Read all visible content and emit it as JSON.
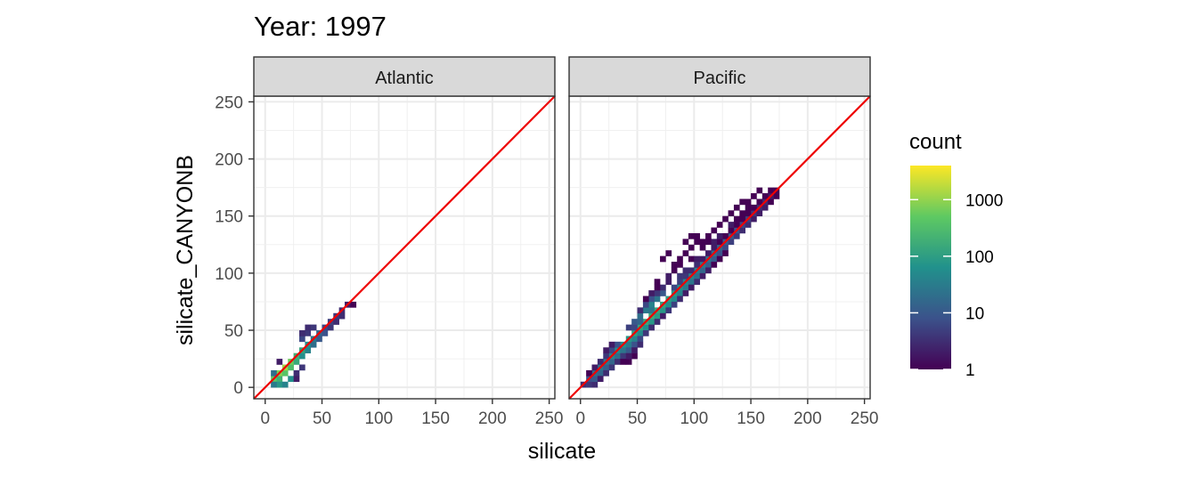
{
  "chart_data": {
    "type": "heatmap",
    "title": "Year: 1997",
    "xlabel": "silicate",
    "ylabel": "silicate_CANYONB",
    "xlim": [
      -10,
      255
    ],
    "ylim": [
      -10,
      255
    ],
    "x_ticks": [
      0,
      50,
      100,
      150,
      200,
      250
    ],
    "y_ticks": [
      0,
      50,
      100,
      150,
      200,
      250
    ],
    "x_tick_labels": [
      "0",
      "50",
      "100",
      "150",
      "200",
      "250"
    ],
    "y_tick_labels": [
      "0",
      "50",
      "100",
      "150",
      "200",
      "250"
    ],
    "grid": true,
    "reference_line": {
      "slope": 1,
      "intercept": 0,
      "color": "#ee0000"
    },
    "legend": {
      "title": "count",
      "position": "right",
      "scale": "log",
      "range": [
        1,
        4000
      ],
      "ticks": [
        1,
        10,
        100,
        1000
      ],
      "tick_labels": [
        "1",
        "10",
        "100",
        "1000"
      ],
      "colormap": [
        "#440154",
        "#3b528b",
        "#21918c",
        "#5ec962",
        "#fde725"
      ]
    },
    "bin_width": 5,
    "panels": [
      {
        "name": "Atlantic",
        "bins": [
          [
            5,
            5,
            500
          ],
          [
            10,
            5,
            200
          ],
          [
            10,
            10,
            800
          ],
          [
            15,
            10,
            400
          ],
          [
            15,
            15,
            1200
          ],
          [
            20,
            15,
            300
          ],
          [
            20,
            20,
            600
          ],
          [
            25,
            20,
            150
          ],
          [
            10,
            0,
            80
          ],
          [
            15,
            0,
            40
          ],
          [
            20,
            5,
            60
          ],
          [
            5,
            0,
            30
          ],
          [
            25,
            25,
            200
          ],
          [
            30,
            25,
            60
          ],
          [
            30,
            30,
            120
          ],
          [
            35,
            30,
            40
          ],
          [
            35,
            35,
            60
          ],
          [
            40,
            35,
            20
          ],
          [
            40,
            40,
            30
          ],
          [
            45,
            40,
            10
          ],
          [
            45,
            45,
            15
          ],
          [
            50,
            45,
            8
          ],
          [
            30,
            40,
            6
          ],
          [
            35,
            45,
            4
          ],
          [
            30,
            45,
            3
          ],
          [
            35,
            50,
            3
          ],
          [
            40,
            50,
            4
          ],
          [
            50,
            50,
            6
          ],
          [
            55,
            50,
            4
          ],
          [
            55,
            55,
            5
          ],
          [
            60,
            55,
            3
          ],
          [
            60,
            60,
            4
          ],
          [
            65,
            60,
            3
          ],
          [
            65,
            65,
            3
          ],
          [
            70,
            70,
            2
          ],
          [
            75,
            70,
            1
          ],
          [
            10,
            20,
            2
          ],
          [
            25,
            10,
            3
          ],
          [
            30,
            15,
            4
          ],
          [
            25,
            5,
            2
          ],
          [
            5,
            10,
            20
          ]
        ]
      },
      {
        "name": "Pacific",
        "bins": [
          [
            0,
            0,
            3
          ],
          [
            5,
            0,
            4
          ],
          [
            5,
            5,
            8
          ],
          [
            10,
            0,
            3
          ],
          [
            10,
            5,
            10
          ],
          [
            10,
            10,
            20
          ],
          [
            15,
            10,
            15
          ],
          [
            15,
            15,
            25
          ],
          [
            20,
            15,
            12
          ],
          [
            20,
            20,
            30
          ],
          [
            25,
            20,
            15
          ],
          [
            25,
            25,
            40
          ],
          [
            30,
            25,
            20
          ],
          [
            30,
            30,
            50
          ],
          [
            35,
            30,
            25
          ],
          [
            35,
            35,
            60
          ],
          [
            40,
            35,
            30
          ],
          [
            40,
            40,
            80
          ],
          [
            45,
            40,
            40
          ],
          [
            45,
            45,
            100
          ],
          [
            50,
            45,
            50
          ],
          [
            50,
            50,
            120
          ],
          [
            55,
            50,
            60
          ],
          [
            55,
            55,
            150
          ],
          [
            60,
            55,
            80
          ],
          [
            60,
            60,
            160
          ],
          [
            65,
            60,
            90
          ],
          [
            65,
            65,
            140
          ],
          [
            70,
            65,
            80
          ],
          [
            70,
            70,
            120
          ],
          [
            75,
            70,
            60
          ],
          [
            75,
            75,
            100
          ],
          [
            80,
            75,
            50
          ],
          [
            80,
            80,
            80
          ],
          [
            85,
            80,
            40
          ],
          [
            85,
            85,
            60
          ],
          [
            90,
            85,
            30
          ],
          [
            90,
            90,
            50
          ],
          [
            95,
            90,
            25
          ],
          [
            95,
            95,
            40
          ],
          [
            100,
            95,
            20
          ],
          [
            100,
            100,
            35
          ],
          [
            105,
            100,
            15
          ],
          [
            105,
            105,
            30
          ],
          [
            110,
            105,
            12
          ],
          [
            110,
            110,
            25
          ],
          [
            115,
            110,
            10
          ],
          [
            115,
            115,
            20
          ],
          [
            120,
            115,
            8
          ],
          [
            120,
            120,
            15
          ],
          [
            125,
            120,
            6
          ],
          [
            125,
            125,
            12
          ],
          [
            130,
            125,
            5
          ],
          [
            130,
            130,
            10
          ],
          [
            135,
            130,
            4
          ],
          [
            135,
            135,
            8
          ],
          [
            140,
            135,
            3
          ],
          [
            140,
            140,
            6
          ],
          [
            145,
            140,
            3
          ],
          [
            145,
            145,
            5
          ],
          [
            150,
            145,
            2
          ],
          [
            150,
            150,
            4
          ],
          [
            155,
            150,
            2
          ],
          [
            155,
            155,
            3
          ],
          [
            160,
            155,
            2
          ],
          [
            160,
            160,
            3
          ],
          [
            165,
            160,
            1
          ],
          [
            165,
            165,
            2
          ],
          [
            170,
            165,
            1
          ],
          [
            170,
            170,
            1
          ],
          [
            55,
            65,
            30
          ],
          [
            60,
            70,
            40
          ],
          [
            65,
            75,
            25
          ],
          [
            70,
            80,
            10
          ],
          [
            50,
            60,
            20
          ],
          [
            45,
            55,
            10
          ],
          [
            40,
            50,
            5
          ],
          [
            60,
            75,
            8
          ],
          [
            65,
            80,
            4
          ],
          [
            55,
            70,
            6
          ],
          [
            60,
            65,
            25
          ],
          [
            50,
            55,
            15
          ],
          [
            40,
            30,
            10
          ],
          [
            45,
            35,
            8
          ],
          [
            50,
            40,
            6
          ],
          [
            35,
            25,
            4
          ],
          [
            30,
            20,
            3
          ],
          [
            25,
            15,
            4
          ],
          [
            20,
            10,
            3
          ],
          [
            15,
            5,
            2
          ],
          [
            55,
            45,
            4
          ],
          [
            60,
            50,
            3
          ],
          [
            65,
            55,
            3
          ],
          [
            70,
            60,
            2
          ],
          [
            75,
            65,
            4
          ],
          [
            80,
            70,
            5
          ],
          [
            85,
            75,
            3
          ],
          [
            90,
            80,
            2
          ],
          [
            95,
            85,
            2
          ],
          [
            100,
            90,
            3
          ],
          [
            105,
            95,
            2
          ],
          [
            110,
            100,
            2
          ],
          [
            115,
            105,
            1
          ],
          [
            120,
            110,
            1
          ],
          [
            125,
            115,
            1
          ],
          [
            80,
            85,
            6
          ],
          [
            85,
            90,
            5
          ],
          [
            90,
            95,
            4
          ],
          [
            95,
            100,
            3
          ],
          [
            100,
            105,
            3
          ],
          [
            105,
            110,
            2
          ],
          [
            110,
            115,
            2
          ],
          [
            115,
            120,
            2
          ],
          [
            120,
            125,
            1
          ],
          [
            125,
            130,
            1
          ],
          [
            130,
            135,
            1
          ],
          [
            135,
            140,
            1
          ],
          [
            140,
            145,
            1
          ],
          [
            145,
            150,
            1
          ],
          [
            150,
            155,
            1
          ],
          [
            155,
            160,
            1
          ],
          [
            160,
            165,
            1
          ],
          [
            165,
            170,
            1
          ],
          [
            30,
            35,
            8
          ],
          [
            25,
            30,
            6
          ],
          [
            20,
            25,
            4
          ],
          [
            75,
            90,
            2
          ],
          [
            70,
            85,
            3
          ],
          [
            65,
            85,
            1
          ],
          [
            75,
            95,
            2
          ],
          [
            80,
            100,
            1
          ],
          [
            85,
            110,
            1
          ],
          [
            90,
            115,
            1
          ],
          [
            95,
            120,
            1
          ],
          [
            100,
            125,
            1
          ],
          [
            110,
            130,
            1
          ],
          [
            115,
            135,
            1
          ],
          [
            120,
            140,
            1
          ],
          [
            125,
            145,
            1
          ],
          [
            130,
            150,
            1
          ],
          [
            135,
            155,
            1
          ],
          [
            140,
            160,
            1
          ],
          [
            145,
            160,
            1
          ],
          [
            150,
            165,
            1
          ],
          [
            155,
            170,
            1
          ],
          [
            120,
            130,
            2
          ],
          [
            105,
            120,
            1
          ],
          [
            95,
            110,
            1
          ],
          [
            70,
            110,
            1
          ],
          [
            75,
            115,
            1
          ],
          [
            95,
            130,
            1
          ],
          [
            90,
            125,
            1
          ],
          [
            100,
            130,
            1
          ],
          [
            110,
            125,
            1
          ],
          [
            105,
            125,
            1
          ],
          [
            65,
            90,
            1
          ],
          [
            85,
            105,
            1
          ],
          [
            80,
            105,
            1
          ],
          [
            40,
            20,
            1
          ],
          [
            45,
            25,
            1
          ],
          [
            40,
            25,
            2
          ],
          [
            35,
            20,
            1
          ],
          [
            10,
            15,
            2
          ],
          [
            5,
            10,
            1
          ],
          [
            20,
            30,
            2
          ],
          [
            15,
            20,
            3
          ],
          [
            45,
            30,
            2
          ],
          [
            50,
            35,
            3
          ],
          [
            25,
            35,
            2
          ],
          [
            45,
            50,
            6
          ],
          [
            50,
            65,
            3
          ],
          [
            60,
            80,
            2
          ],
          [
            100,
            110,
            2
          ],
          [
            55,
            75,
            1
          ],
          [
            85,
            95,
            4
          ],
          [
            90,
            100,
            3
          ],
          [
            130,
            140,
            2
          ],
          [
            135,
            145,
            1
          ],
          [
            140,
            150,
            1
          ],
          [
            145,
            155,
            1
          ],
          [
            115,
            125,
            2
          ]
        ]
      }
    ]
  }
}
